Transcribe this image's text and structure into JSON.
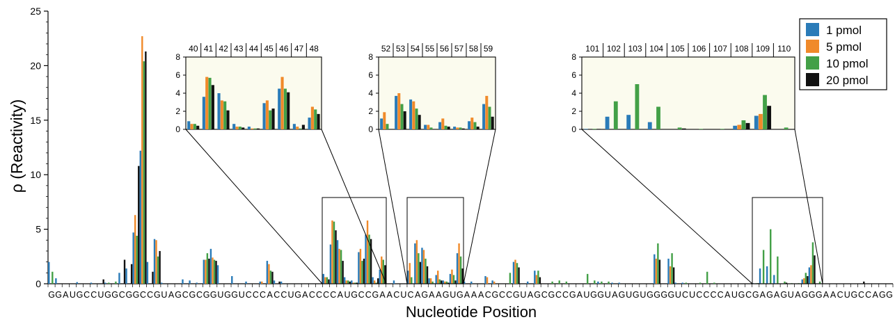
{
  "chart_data": {
    "type": "bar",
    "xlabel": "Nucleotide Position",
    "ylabel": "ρ (Reactivity)",
    "ylim": [
      0,
      25
    ],
    "yticks": [
      0,
      5,
      10,
      15,
      20,
      25
    ],
    "sequence": "GGAUGCCUGGCGGCCGUAGCGCGGUGGUCCCACCUGACCCCAUGCCGAACUCAGAAGUGAAACGCCGUAGCGCCGAUGGUAGUGUGGGGUCUCCCCAUGCGAGAGUAGGGAACUGCCAGG",
    "legend_position": "top-right",
    "series": [
      {
        "name": "1 pmol",
        "color": "#2a7bb8"
      },
      {
        "name": "5 pmol",
        "color": "#f08a2a"
      },
      {
        "name": "10 pmol",
        "color": "#43a047"
      },
      {
        "name": "20 pmol",
        "color": "#111111"
      }
    ],
    "bars": [
      {
        "pos": 1,
        "v": [
          2.0,
          0.0,
          1.1,
          0.0
        ]
      },
      {
        "pos": 2,
        "v": [
          0.5,
          0.0,
          0.0,
          0.0
        ]
      },
      {
        "pos": 5,
        "v": [
          0.15,
          0.0,
          0.0,
          0.0
        ]
      },
      {
        "pos": 7,
        "v": [
          0.1,
          0.0,
          0.0,
          0.0
        ]
      },
      {
        "pos": 8,
        "v": [
          0.0,
          0.0,
          0.0,
          0.4
        ]
      },
      {
        "pos": 9,
        "v": [
          0.1,
          0.0,
          0.1,
          0.0
        ]
      },
      {
        "pos": 10,
        "v": [
          0.0,
          0.0,
          0.2,
          0.0
        ]
      },
      {
        "pos": 11,
        "v": [
          1.0,
          0.0,
          0.0,
          2.2
        ]
      },
      {
        "pos": 12,
        "v": [
          1.4,
          0.0,
          0.0,
          1.8
        ]
      },
      {
        "pos": 13,
        "v": [
          4.7,
          6.3,
          4.4,
          10.8
        ]
      },
      {
        "pos": 14,
        "v": [
          12.2,
          22.7,
          20.4,
          21.3
        ]
      },
      {
        "pos": 15,
        "v": [
          2.0,
          0.0,
          0.0,
          1.1
        ]
      },
      {
        "pos": 16,
        "v": [
          4.1,
          4.0,
          2.5,
          3.0
        ]
      },
      {
        "pos": 17,
        "v": [
          0.1,
          0.0,
          0.0,
          0.0
        ]
      },
      {
        "pos": 20,
        "v": [
          0.4,
          0.0,
          0.0,
          0.0
        ]
      },
      {
        "pos": 21,
        "v": [
          0.3,
          0.0,
          0.0,
          0.0
        ]
      },
      {
        "pos": 22,
        "v": [
          0.1,
          0.0,
          0.0,
          0.0
        ]
      },
      {
        "pos": 23,
        "v": [
          2.2,
          2.2,
          2.8,
          2.3
        ]
      },
      {
        "pos": 24,
        "v": [
          3.2,
          2.4,
          2.2,
          2.1
        ]
      },
      {
        "pos": 25,
        "v": [
          1.7,
          0.0,
          0.0,
          0.0
        ]
      },
      {
        "pos": 27,
        "v": [
          0.7,
          0.0,
          0.0,
          0.0
        ]
      },
      {
        "pos": 29,
        "v": [
          0.2,
          0.0,
          0.0,
          0.0
        ]
      },
      {
        "pos": 31,
        "v": [
          0.2,
          0.2,
          0.0,
          0.0
        ]
      },
      {
        "pos": 32,
        "v": [
          2.1,
          1.8,
          1.2,
          1.1
        ]
      },
      {
        "pos": 33,
        "v": [
          0.3,
          0.0,
          0.0,
          0.2
        ]
      },
      {
        "pos": 34,
        "v": [
          0.2,
          0.0,
          0.0,
          0.0
        ]
      },
      {
        "pos": 40,
        "v": [
          0.9,
          0.6,
          0.6,
          0.4
        ]
      },
      {
        "pos": 41,
        "v": [
          3.6,
          5.8,
          5.7,
          4.9
        ]
      },
      {
        "pos": 42,
        "v": [
          4.0,
          3.2,
          3.1,
          2.1
        ]
      },
      {
        "pos": 43,
        "v": [
          0.6,
          0.3,
          0.3,
          0.2
        ]
      },
      {
        "pos": 44,
        "v": [
          0.3,
          0.1,
          0.1,
          0.1
        ]
      },
      {
        "pos": 45,
        "v": [
          2.9,
          3.2,
          2.1,
          2.3
        ]
      },
      {
        "pos": 46,
        "v": [
          4.5,
          5.8,
          4.5,
          4.1
        ]
      },
      {
        "pos": 47,
        "v": [
          0.6,
          0.3,
          0.1,
          0.5
        ]
      },
      {
        "pos": 48,
        "v": [
          1.3,
          2.5,
          2.2,
          1.7
        ]
      },
      {
        "pos": 50,
        "v": [
          0.3,
          0.0,
          0.0,
          0.0
        ]
      },
      {
        "pos": 52,
        "v": [
          1.2,
          1.9,
          0.6,
          0.0
        ]
      },
      {
        "pos": 53,
        "v": [
          3.7,
          4.0,
          2.8,
          2.0
        ]
      },
      {
        "pos": 54,
        "v": [
          3.3,
          3.1,
          2.3,
          1.6
        ]
      },
      {
        "pos": 55,
        "v": [
          0.5,
          0.5,
          0.2,
          0.0
        ]
      },
      {
        "pos": 56,
        "v": [
          0.8,
          1.2,
          0.4,
          0.3
        ]
      },
      {
        "pos": 57,
        "v": [
          0.3,
          0.2,
          0.2,
          0.1
        ]
      },
      {
        "pos": 58,
        "v": [
          0.9,
          1.3,
          0.8,
          0.3
        ]
      },
      {
        "pos": 59,
        "v": [
          2.8,
          3.7,
          2.5,
          1.4
        ]
      },
      {
        "pos": 60,
        "v": [
          0.2,
          0.0,
          0.0,
          0.0
        ]
      },
      {
        "pos": 61,
        "v": [
          0.2,
          0.0,
          0.0,
          0.0
        ]
      },
      {
        "pos": 63,
        "v": [
          0.7,
          0.6,
          0.0,
          0.0
        ]
      },
      {
        "pos": 64,
        "v": [
          0.3,
          0.2,
          0.0,
          0.0
        ]
      },
      {
        "pos": 66,
        "v": [
          0.0,
          0.0,
          1.0,
          0.0
        ]
      },
      {
        "pos": 67,
        "v": [
          2.0,
          2.2,
          1.9,
          1.5
        ]
      },
      {
        "pos": 69,
        "v": [
          0.2,
          0.0,
          0.0,
          0.0
        ]
      },
      {
        "pos": 70,
        "v": [
          1.2,
          0.8,
          1.2,
          0.6
        ]
      },
      {
        "pos": 72,
        "v": [
          0.0,
          0.0,
          0.2,
          0.0
        ]
      },
      {
        "pos": 73,
        "v": [
          0.0,
          0.0,
          0.3,
          0.0
        ]
      },
      {
        "pos": 74,
        "v": [
          0.0,
          0.0,
          0.2,
          0.0
        ]
      },
      {
        "pos": 77,
        "v": [
          0.0,
          0.0,
          0.9,
          0.0
        ]
      },
      {
        "pos": 78,
        "v": [
          0.0,
          0.0,
          0.3,
          0.0
        ]
      },
      {
        "pos": 79,
        "v": [
          0.2,
          0.0,
          0.2,
          0.0
        ]
      },
      {
        "pos": 80,
        "v": [
          0.0,
          0.0,
          0.2,
          0.0
        ]
      },
      {
        "pos": 81,
        "v": [
          0.1,
          0.0,
          0.0,
          0.0
        ]
      },
      {
        "pos": 82,
        "v": [
          0.1,
          0.0,
          0.0,
          0.0
        ]
      },
      {
        "pos": 87,
        "v": [
          2.7,
          2.3,
          3.7,
          2.2
        ]
      },
      {
        "pos": 88,
        "v": [
          0.0,
          0.0,
          0.0,
          0.0
        ]
      },
      {
        "pos": 89,
        "v": [
          2.3,
          1.6,
          2.8,
          1.5
        ]
      },
      {
        "pos": 90,
        "v": [
          0.1,
          0.0,
          0.0,
          0.0
        ]
      },
      {
        "pos": 91,
        "v": [
          0.1,
          0.0,
          0.1,
          0.0
        ]
      },
      {
        "pos": 93,
        "v": [
          0.0,
          0.0,
          0.1,
          0.0
        ]
      },
      {
        "pos": 94,
        "v": [
          0.0,
          0.0,
          1.1,
          0.0
        ]
      },
      {
        "pos": 95,
        "v": [
          0.0,
          0.0,
          0.1,
          0.0
        ]
      },
      {
        "pos": 101,
        "v": [
          0.05,
          0.0,
          0.05,
          0.05
        ]
      },
      {
        "pos": 102,
        "v": [
          1.4,
          0.0,
          3.1,
          0.0
        ]
      },
      {
        "pos": 103,
        "v": [
          1.6,
          0.0,
          5.0,
          0.0
        ]
      },
      {
        "pos": 104,
        "v": [
          0.8,
          0.0,
          2.5,
          0.0
        ]
      },
      {
        "pos": 105,
        "v": [
          0.0,
          0.0,
          0.2,
          0.1
        ]
      },
      {
        "pos": 106,
        "v": [
          0.0,
          0.0,
          0.05,
          0.0
        ]
      },
      {
        "pos": 107,
        "v": [
          0.0,
          0.0,
          0.05,
          0.0
        ]
      },
      {
        "pos": 108,
        "v": [
          0.4,
          0.5,
          1.0,
          0.7
        ]
      },
      {
        "pos": 109,
        "v": [
          1.5,
          1.7,
          3.8,
          2.6
        ]
      },
      {
        "pos": 110,
        "v": [
          0.0,
          0.0,
          0.2,
          0.0
        ]
      },
      {
        "pos": 116,
        "v": [
          0.0,
          0.0,
          0.0,
          0.2
        ]
      }
    ],
    "insets": [
      {
        "positions": [
          40,
          41,
          42,
          43,
          44,
          45,
          46,
          47,
          48
        ],
        "ylim": [
          0,
          8
        ],
        "yticks": [
          0,
          2,
          4,
          6,
          8
        ]
      },
      {
        "positions": [
          52,
          53,
          54,
          55,
          56,
          57,
          58,
          59
        ],
        "ylim": [
          0,
          8
        ],
        "yticks": [
          0,
          2,
          4,
          6,
          8
        ]
      },
      {
        "positions": [
          101,
          102,
          103,
          104,
          105,
          106,
          107,
          108,
          109,
          110
        ],
        "ylim": [
          0,
          8
        ],
        "yticks": [
          0,
          2,
          4,
          6,
          8
        ]
      }
    ]
  }
}
